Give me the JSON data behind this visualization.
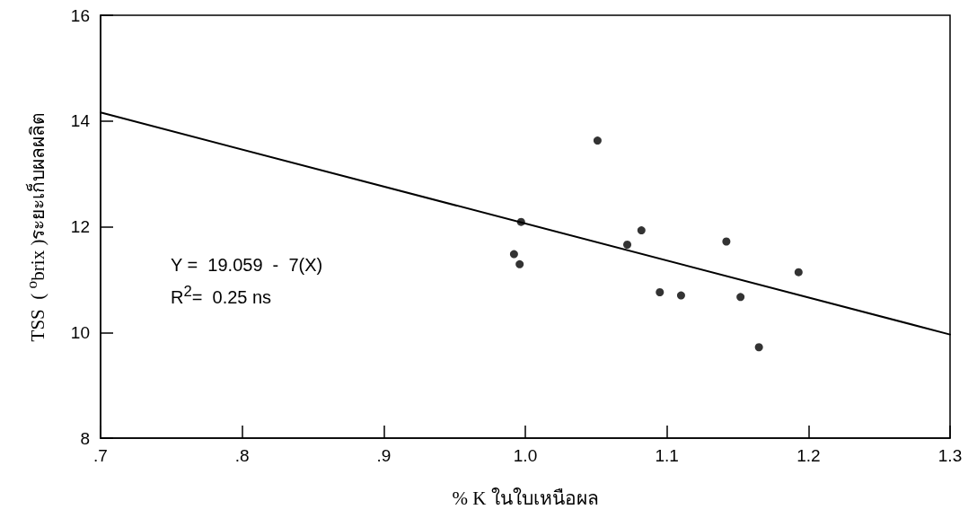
{
  "chart_data": {
    "type": "scatter",
    "xlabel": "% K ในใบเหนือผล",
    "ylabel": "TSS  ( $^{o}$brix )ระยะเก็บผลผลิต",
    "annotations": [
      "Y =  19.059  -  7(X)",
      "R$^{2}$=  0.25 ns"
    ],
    "x": [
      1.051,
      0.997,
      0.992,
      0.996,
      1.072,
      1.082,
      1.095,
      1.11,
      1.142,
      1.152,
      1.165,
      1.193
    ],
    "series": [
      {
        "color": "#000000",
        "marker": "circle",
        "values": [
          13.63,
          12.09,
          11.48,
          11.29,
          11.66,
          11.93,
          10.76,
          10.7,
          11.72,
          10.67,
          9.72,
          11.14
        ]
      },
      {
        "type": "line",
        "color": "#000000",
        "marker": "none",
        "line_style": "solid",
        "x": [
          0.7,
          1.3
        ],
        "values": [
          14.16,
          9.96
        ]
      }
    ],
    "xlim": [
      0.7,
      1.3
    ],
    "xticks": [
      {
        "value": 0.7,
        "label": ".7"
      },
      {
        "value": 0.8,
        "label": ".8"
      },
      {
        "value": 0.9,
        "label": ".9"
      },
      {
        "value": 1.0,
        "label": "1.0"
      },
      {
        "value": 1.1,
        "label": "1.1"
      },
      {
        "value": 1.2,
        "label": "1.2"
      },
      {
        "value": 1.3,
        "label": "1.3"
      }
    ],
    "ylim": [
      8,
      16
    ],
    "yticks": [
      8,
      10,
      12,
      14,
      16
    ],
    "grid": false
  }
}
